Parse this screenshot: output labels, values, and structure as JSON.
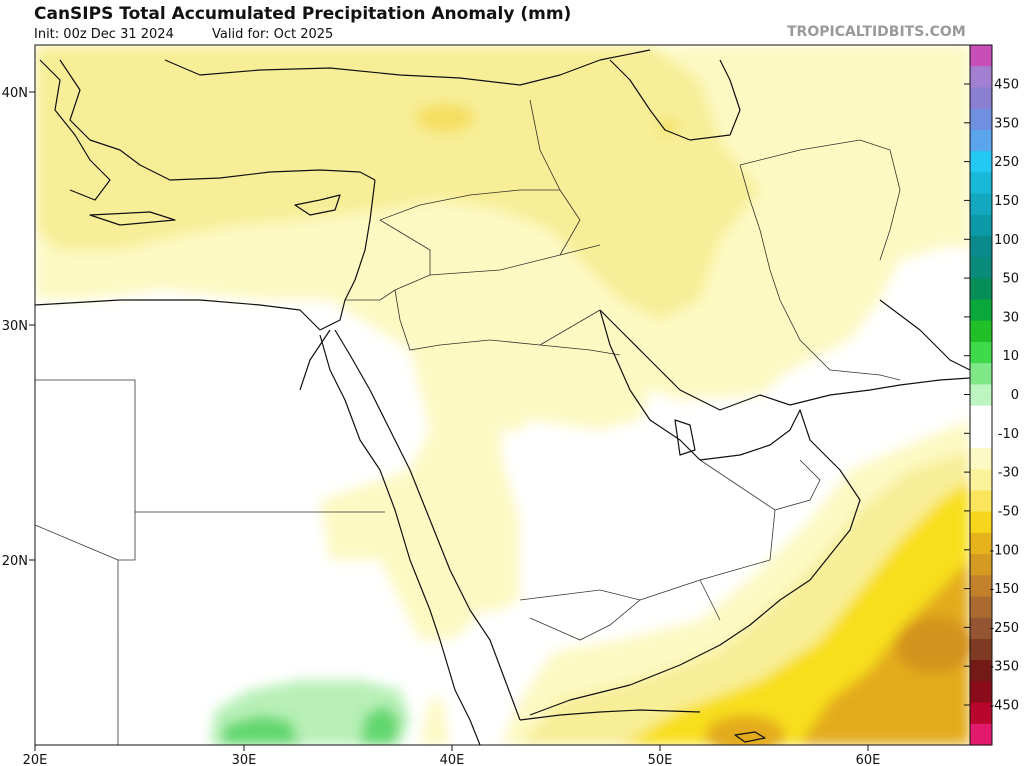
{
  "header": {
    "title": "CanSIPS Total Accumulated Precipitation Anomaly (mm)",
    "init": "Init: 00z Dec 31 2024",
    "valid": "Valid for: Oct 2025",
    "brand": "TROPICALTIDBITS.COM"
  },
  "axes": {
    "lon_labels": [
      "20E",
      "30E",
      "40E",
      "50E",
      "60E"
    ],
    "lat_labels": [
      "40N",
      "30N",
      "20N"
    ]
  },
  "colorbar": {
    "labels": [
      "450",
      "350",
      "250",
      "150",
      "100",
      "50",
      "30",
      "10",
      "0",
      "-10",
      "-30",
      "-50",
      "-100",
      "-150",
      "-250",
      "-350",
      "-450"
    ],
    "colors": [
      "#c94fb8",
      "#a27fd0",
      "#8a7fd0",
      "#6f8fe0",
      "#5aa5ec",
      "#23c9f2",
      "#19b8d8",
      "#14a7c0",
      "#0d9aa8",
      "#0b8a8c",
      "#0a8a7a",
      "#078e58",
      "#0aa83a",
      "#22c028",
      "#3fd94c",
      "#7ee886",
      "#bdf5c0",
      "#ffffff",
      "#ffffff",
      "#fbf9c4",
      "#fbf29c",
      "#fbe55c",
      "#f7d51c",
      "#e6b41a",
      "#d49a22",
      "#c2812a",
      "#aa6a30",
      "#935532",
      "#7e3a22",
      "#741a16",
      "#8a0c1a",
      "#b8062c",
      "#e21a6e"
    ]
  },
  "colors": {
    "ocean": "#ffffff",
    "dry_light": "#fcf9c3",
    "dry_mid": "#f8ee98",
    "dry_strong": "#f8df1c",
    "dry_deep": "#e3ab1b",
    "wet_light": "#b8f0b7",
    "wet_mid": "#62d76e"
  }
}
